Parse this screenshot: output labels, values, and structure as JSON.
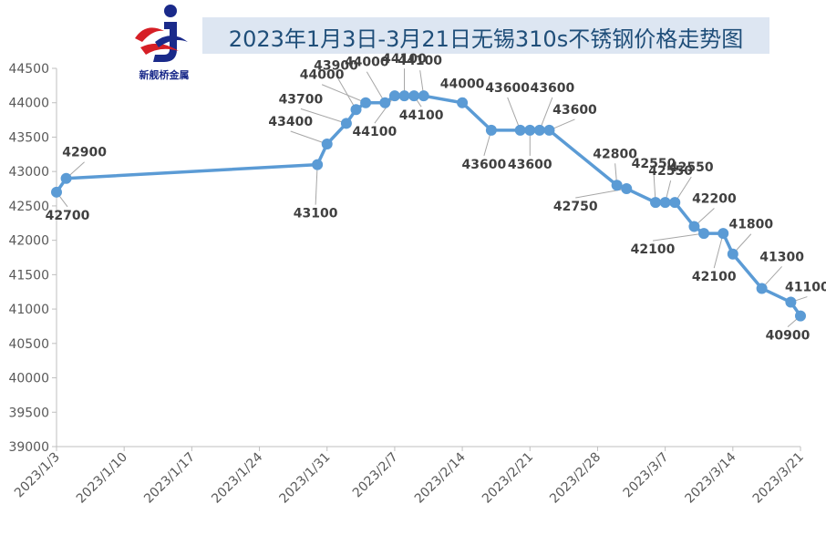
{
  "logo": {
    "name": "新舰桥金属"
  },
  "colors": {
    "line": "#5b9bd5",
    "axis_text": "#595959",
    "label": "#404040",
    "leader": "#a6a6a6",
    "title_bg": "#dde6f2",
    "title_text": "#1f4e79"
  },
  "chart_data": {
    "type": "line",
    "title": "2023年1月3日-3月21日无锡310s不锈钢价格走势图",
    "xlabel": "",
    "ylabel": "",
    "ylim": [
      39000,
      44500
    ],
    "ytick_step": 500,
    "xlim": [
      "2023-01-03",
      "2023-03-21"
    ],
    "xtick_labels": [
      "2023/1/3",
      "2023/1/10",
      "2023/1/17",
      "2023/1/24",
      "2023/1/31",
      "2023/2/7",
      "2023/2/14",
      "2023/2/21",
      "2023/2/28",
      "2023/3/7",
      "2023/3/14",
      "2023/3/21"
    ],
    "grid": false,
    "legend": "none",
    "series": [
      {
        "x": [
          "2023-01-03",
          "2023-01-04",
          "2023-01-30",
          "2023-01-31",
          "2023-02-02",
          "2023-02-03",
          "2023-02-04",
          "2023-02-06",
          "2023-02-07",
          "2023-02-08",
          "2023-02-09",
          "2023-02-10",
          "2023-02-14",
          "2023-02-17",
          "2023-02-20",
          "2023-02-21",
          "2023-02-22",
          "2023-02-23",
          "2023-03-02",
          "2023-03-03",
          "2023-03-06",
          "2023-03-07",
          "2023-03-08",
          "2023-03-10",
          "2023-03-11",
          "2023-03-13",
          "2023-03-14",
          "2023-03-17",
          "2023-03-20",
          "2023-03-21"
        ],
        "y": [
          42700,
          42900,
          43100,
          43400,
          43700,
          43900,
          44000,
          44000,
          44100,
          44100,
          44100,
          44100,
          44000,
          43600,
          43600,
          43600,
          43600,
          43600,
          42800,
          42750,
          42550,
          42550,
          42550,
          42200,
          42100,
          42100,
          41800,
          41300,
          41100,
          40900
        ]
      }
    ],
    "data_labels": [
      "42700",
      "42900",
      "43100",
      "43400",
      "43700",
      "43900",
      "44000",
      "44000",
      "44100",
      "44100",
      "44100",
      "44100",
      "44000",
      "43600",
      "43600",
      "43600",
      "43600",
      "43600",
      "42800",
      "42750",
      "42550",
      "42550",
      "42550",
      "42200",
      "42100",
      "42100",
      "41800",
      "41300",
      "41100",
      "40900"
    ]
  }
}
